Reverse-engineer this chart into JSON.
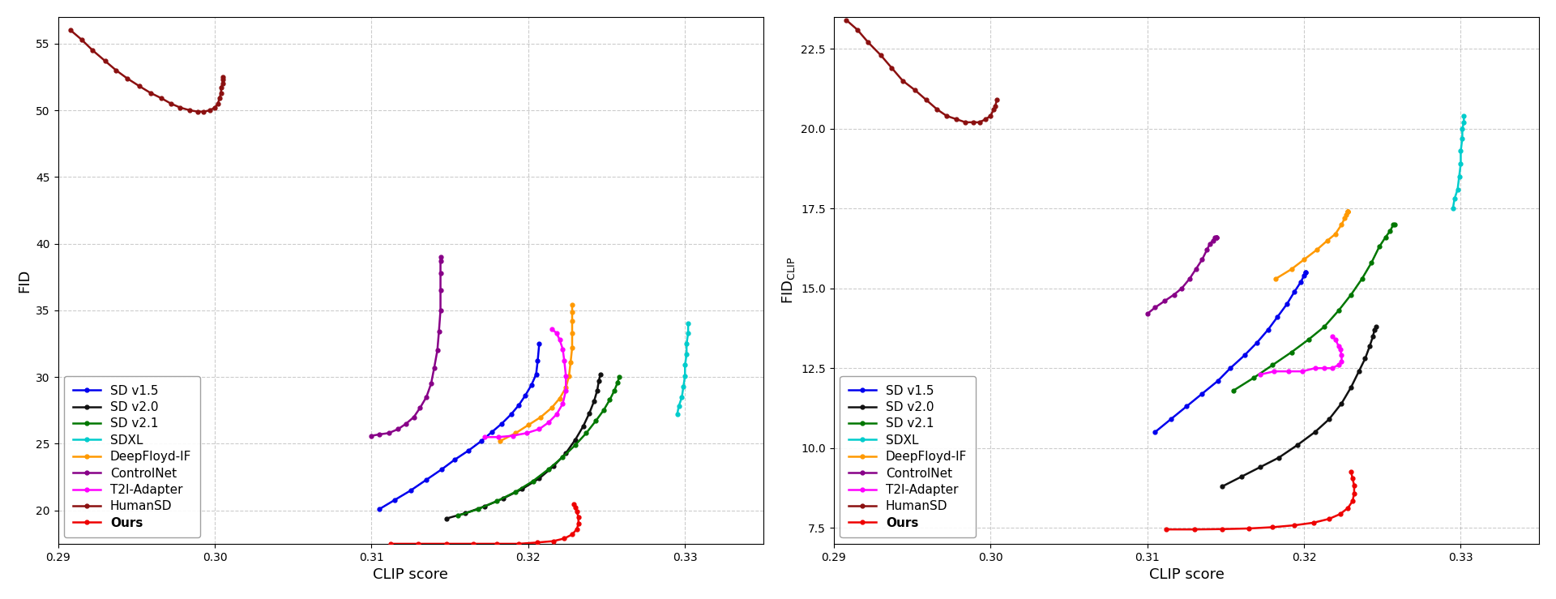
{
  "left_ylabel": "FID",
  "right_ylabel": "FID_CLIP",
  "xlabel": "CLIP score",
  "xlim": [
    0.29,
    0.335
  ],
  "left_ylim": [
    17.5,
    57
  ],
  "right_ylim": [
    7.0,
    23.5
  ],
  "left_yticks": [
    20,
    25,
    30,
    35,
    40,
    45,
    50,
    55
  ],
  "right_yticks": [
    7.5,
    10.0,
    12.5,
    15.0,
    17.5,
    20.0,
    22.5
  ],
  "xticks": [
    0.29,
    0.3,
    0.31,
    0.32,
    0.33
  ],
  "grid_color": "#aaaaaa",
  "background_color": "#ffffff",
  "series": [
    {
      "label": "SD v1.5",
      "color": "#0000ee",
      "left_x": [
        0.3105,
        0.3115,
        0.3125,
        0.3135,
        0.3145,
        0.3153,
        0.3162,
        0.317,
        0.3177,
        0.3183,
        0.3189,
        0.3194,
        0.3198,
        0.3202,
        0.3205,
        0.3206,
        0.3207
      ],
      "left_y": [
        20.1,
        20.8,
        21.5,
        22.3,
        23.1,
        23.8,
        24.5,
        25.2,
        25.9,
        26.5,
        27.2,
        27.9,
        28.6,
        29.4,
        30.2,
        31.2,
        32.5
      ],
      "right_x": [
        0.3105,
        0.3115,
        0.3125,
        0.3135,
        0.3145,
        0.3153,
        0.3162,
        0.317,
        0.3177,
        0.3183,
        0.3189,
        0.3194,
        0.3198,
        0.32,
        0.3201,
        0.3201
      ],
      "right_y": [
        10.5,
        10.9,
        11.3,
        11.7,
        12.1,
        12.5,
        12.9,
        13.3,
        13.7,
        14.1,
        14.5,
        14.9,
        15.2,
        15.4,
        15.5,
        15.5
      ]
    },
    {
      "label": "SD v2.0",
      "color": "#111111",
      "left_x": [
        0.3148,
        0.316,
        0.3172,
        0.3184,
        0.3196,
        0.3207,
        0.3216,
        0.3224,
        0.323,
        0.3235,
        0.3239,
        0.3242,
        0.3244,
        0.3245,
        0.3246
      ],
      "left_y": [
        19.4,
        19.8,
        20.3,
        20.9,
        21.6,
        22.4,
        23.3,
        24.3,
        25.3,
        26.3,
        27.3,
        28.2,
        29.0,
        29.7,
        30.2
      ],
      "right_x": [
        0.3148,
        0.316,
        0.3172,
        0.3184,
        0.3196,
        0.3207,
        0.3216,
        0.3224,
        0.323,
        0.3235,
        0.3239,
        0.3242,
        0.3244,
        0.3245,
        0.3246
      ],
      "right_y": [
        8.8,
        9.1,
        9.4,
        9.7,
        10.1,
        10.5,
        10.9,
        11.4,
        11.9,
        12.4,
        12.8,
        13.2,
        13.5,
        13.7,
        13.8
      ]
    },
    {
      "label": "SD v2.1",
      "color": "#007700",
      "left_x": [
        0.3155,
        0.3168,
        0.318,
        0.3192,
        0.3203,
        0.3213,
        0.3222,
        0.323,
        0.3237,
        0.3243,
        0.3248,
        0.3252,
        0.3255,
        0.3257,
        0.3258
      ],
      "left_y": [
        19.6,
        20.1,
        20.7,
        21.4,
        22.2,
        23.1,
        24.0,
        24.9,
        25.8,
        26.7,
        27.5,
        28.3,
        29.0,
        29.6,
        30.0
      ],
      "right_x": [
        0.3155,
        0.3168,
        0.318,
        0.3192,
        0.3203,
        0.3213,
        0.3222,
        0.323,
        0.3237,
        0.3243,
        0.3248,
        0.3252,
        0.3255,
        0.3257,
        0.3258
      ],
      "right_y": [
        11.8,
        12.2,
        12.6,
        13.0,
        13.4,
        13.8,
        14.3,
        14.8,
        15.3,
        15.8,
        16.3,
        16.6,
        16.8,
        17.0,
        17.0
      ]
    },
    {
      "label": "SDXL",
      "color": "#00cccc",
      "left_x": [
        0.3295,
        0.3296,
        0.3298,
        0.3299,
        0.33,
        0.33,
        0.3301,
        0.3301,
        0.3302,
        0.3302
      ],
      "left_y": [
        27.2,
        27.8,
        28.5,
        29.3,
        30.1,
        30.9,
        31.7,
        32.5,
        33.3,
        34.0
      ],
      "right_x": [
        0.3295,
        0.3296,
        0.3298,
        0.3299,
        0.33,
        0.33,
        0.3301,
        0.3301,
        0.3302,
        0.3302
      ],
      "right_y": [
        17.5,
        17.8,
        18.1,
        18.5,
        18.9,
        19.3,
        19.7,
        20.0,
        20.2,
        20.4
      ]
    },
    {
      "label": "DeepFloyd-IF",
      "color": "#ff9900",
      "left_x": [
        0.3182,
        0.3192,
        0.32,
        0.3208,
        0.3215,
        0.322,
        0.3224,
        0.3226,
        0.3227,
        0.3228,
        0.3228,
        0.3228,
        0.3228,
        0.3228
      ],
      "left_y": [
        25.2,
        25.8,
        26.4,
        27.0,
        27.7,
        28.4,
        29.2,
        30.1,
        31.1,
        32.2,
        33.3,
        34.2,
        34.9,
        35.4
      ],
      "right_x": [
        0.3182,
        0.3192,
        0.32,
        0.3208,
        0.3215,
        0.322,
        0.3224,
        0.3226,
        0.3227,
        0.3228,
        0.3228,
        0.3228,
        0.3228
      ],
      "right_y": [
        15.3,
        15.6,
        15.9,
        16.2,
        16.5,
        16.7,
        17.0,
        17.2,
        17.3,
        17.4,
        17.4,
        17.4,
        17.4
      ]
    },
    {
      "label": "ControlNet",
      "color": "#880088",
      "left_x": [
        0.31,
        0.3105,
        0.3111,
        0.3117,
        0.3122,
        0.3127,
        0.3131,
        0.3135,
        0.3138,
        0.314,
        0.3142,
        0.3143,
        0.3144,
        0.3144,
        0.3144,
        0.3144,
        0.3144
      ],
      "left_y": [
        25.6,
        25.7,
        25.8,
        26.1,
        26.5,
        27.0,
        27.7,
        28.5,
        29.5,
        30.7,
        32.0,
        33.4,
        35.0,
        36.5,
        37.8,
        38.7,
        39.0
      ],
      "right_x": [
        0.31,
        0.3105,
        0.3111,
        0.3117,
        0.3122,
        0.3127,
        0.3131,
        0.3135,
        0.3138,
        0.314,
        0.3142,
        0.3143,
        0.3144,
        0.3144,
        0.3144
      ],
      "right_y": [
        14.2,
        14.4,
        14.6,
        14.8,
        15.0,
        15.3,
        15.6,
        15.9,
        16.2,
        16.4,
        16.5,
        16.6,
        16.6,
        16.6,
        16.6
      ]
    },
    {
      "label": "T2I-Adapter",
      "color": "#ff00ff",
      "left_x": [
        0.3172,
        0.3181,
        0.319,
        0.3199,
        0.3207,
        0.3213,
        0.3218,
        0.3222,
        0.3224,
        0.3224,
        0.3223,
        0.3222,
        0.322,
        0.3218,
        0.3215
      ],
      "left_y": [
        25.5,
        25.5,
        25.6,
        25.8,
        26.1,
        26.6,
        27.2,
        28.0,
        29.0,
        30.1,
        31.2,
        32.1,
        32.8,
        33.3,
        33.6
      ],
      "right_x": [
        0.3172,
        0.3181,
        0.319,
        0.3199,
        0.3207,
        0.3213,
        0.3218,
        0.3222,
        0.3224,
        0.3224,
        0.3223,
        0.3222,
        0.322,
        0.3218
      ],
      "right_y": [
        12.3,
        12.4,
        12.4,
        12.4,
        12.5,
        12.5,
        12.5,
        12.6,
        12.7,
        12.9,
        13.1,
        13.2,
        13.4,
        13.5
      ]
    },
    {
      "label": "HumanSD",
      "color": "#8b1010",
      "left_x": [
        0.2908,
        0.2915,
        0.2922,
        0.293,
        0.2937,
        0.2944,
        0.2952,
        0.2959,
        0.2966,
        0.2972,
        0.2978,
        0.2984,
        0.2989,
        0.2993,
        0.2997,
        0.3,
        0.3002,
        0.3003,
        0.3004,
        0.3004,
        0.3005,
        0.3005,
        0.3005
      ],
      "left_y": [
        56.0,
        55.3,
        54.5,
        53.7,
        53.0,
        52.4,
        51.8,
        51.3,
        50.9,
        50.5,
        50.2,
        50.0,
        49.9,
        49.9,
        50.0,
        50.2,
        50.5,
        50.9,
        51.3,
        51.7,
        52.0,
        52.3,
        52.5
      ],
      "right_x": [
        0.2908,
        0.2915,
        0.2922,
        0.293,
        0.2937,
        0.2944,
        0.2952,
        0.2959,
        0.2966,
        0.2972,
        0.2978,
        0.2984,
        0.2989,
        0.2993,
        0.2997,
        0.3,
        0.3002,
        0.3003,
        0.3004
      ],
      "right_y": [
        23.4,
        23.1,
        22.7,
        22.3,
        21.9,
        21.5,
        21.2,
        20.9,
        20.6,
        20.4,
        20.3,
        20.2,
        20.2,
        20.2,
        20.3,
        20.4,
        20.6,
        20.7,
        20.9
      ]
    },
    {
      "label": "Ours",
      "color": "#ee0000",
      "bold": true,
      "left_x": [
        0.3112,
        0.313,
        0.3148,
        0.3165,
        0.318,
        0.3194,
        0.3206,
        0.3216,
        0.3223,
        0.3228,
        0.3231,
        0.3232,
        0.3232,
        0.3231,
        0.323,
        0.3229
      ],
      "left_y": [
        17.5,
        17.5,
        17.5,
        17.5,
        17.5,
        17.5,
        17.6,
        17.7,
        17.9,
        18.2,
        18.6,
        19.0,
        19.5,
        19.9,
        20.2,
        20.5
      ],
      "right_x": [
        0.3112,
        0.313,
        0.3148,
        0.3165,
        0.318,
        0.3194,
        0.3206,
        0.3216,
        0.3223,
        0.3228,
        0.3231,
        0.3232,
        0.3232,
        0.3231,
        0.323
      ],
      "right_y": [
        7.45,
        7.45,
        7.46,
        7.48,
        7.52,
        7.58,
        7.66,
        7.78,
        7.93,
        8.12,
        8.34,
        8.58,
        8.82,
        9.05,
        9.25
      ]
    }
  ]
}
